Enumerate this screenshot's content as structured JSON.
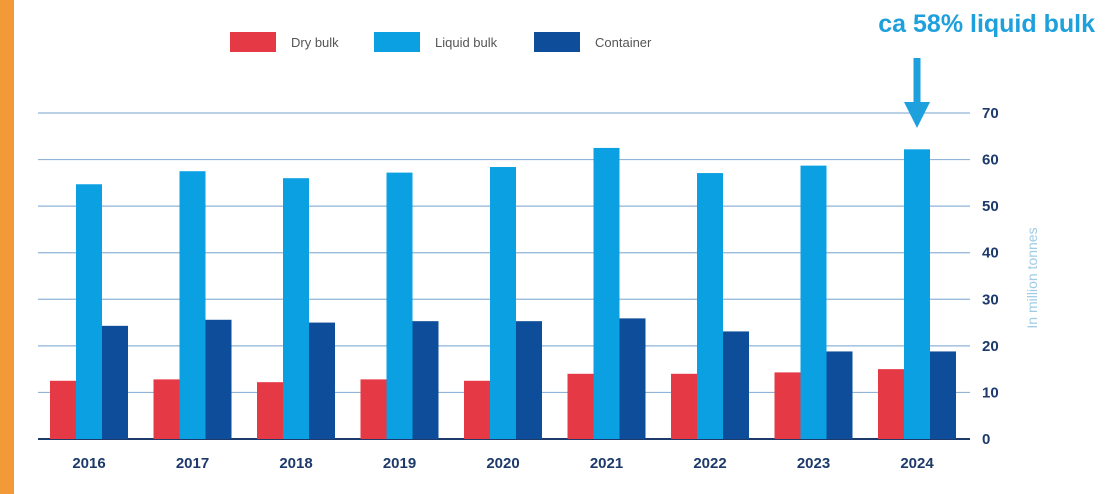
{
  "colors": {
    "stripe": "#f39a38",
    "dry_bulk": "#e63946",
    "liquid_bulk": "#0aa0e2",
    "container": "#0d4d9a",
    "gridline": "#8fb4d8",
    "axis": "#1d3a6b",
    "annotation": "#1ea0dc"
  },
  "annotation": {
    "text": "ca 58% liquid bulk",
    "target_category": "2024",
    "target_series": "Liquid bulk",
    "arrow_icon": "down-arrow-icon"
  },
  "chart_data": {
    "type": "bar",
    "categories": [
      "2016",
      "2017",
      "2018",
      "2019",
      "2020",
      "2021",
      "2022",
      "2023",
      "2024"
    ],
    "series": [
      {
        "name": "Dry bulk",
        "values": [
          12.5,
          12.8,
          12.2,
          12.8,
          12.5,
          14.0,
          14.0,
          14.3,
          15.0
        ]
      },
      {
        "name": "Liquid bulk",
        "values": [
          54.7,
          57.5,
          56.0,
          57.2,
          58.4,
          62.5,
          57.1,
          58.7,
          62.2
        ]
      },
      {
        "name": "Container",
        "values": [
          24.3,
          25.6,
          25.0,
          25.3,
          25.3,
          25.9,
          23.1,
          18.8,
          18.8
        ]
      }
    ],
    "ylabel": "In million tonnes",
    "ylim": [
      0,
      70
    ],
    "yticks": [
      0,
      10,
      20,
      30,
      40,
      50,
      60,
      70
    ],
    "y_axis_side": "right",
    "grid": true,
    "legend_position": "top-center"
  }
}
